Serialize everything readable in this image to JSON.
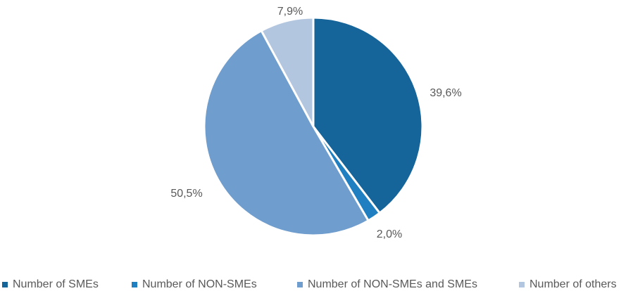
{
  "chart_data": {
    "type": "pie",
    "title": "",
    "slices": [
      {
        "name": "Number of SMEs",
        "value": 39.6,
        "label": "39,6%",
        "color": "#15649a"
      },
      {
        "name": "Number of NON-SMEs",
        "value": 2.0,
        "label": "2,0%",
        "color": "#1f7fc1"
      },
      {
        "name": "Number of NON-SMEs and SMEs",
        "value": 50.5,
        "label": "50,5%",
        "color": "#6f9dcd"
      },
      {
        "name": "Number of others",
        "value": 7.9,
        "label": "7,9%",
        "color": "#b3c6e0"
      }
    ],
    "start_angle": "12 o'clock",
    "direction": "clockwise",
    "legend": "bottom"
  }
}
